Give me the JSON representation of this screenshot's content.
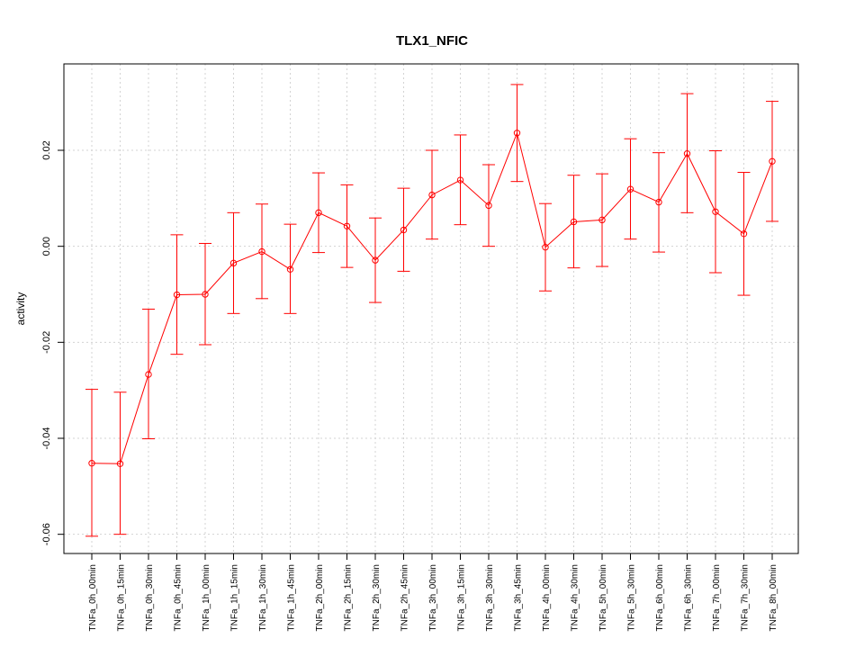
{
  "chart_data": {
    "type": "line",
    "title": "TLX1_NFIC",
    "xlabel": "",
    "ylabel": "activity",
    "ylim": [
      -0.064,
      0.038
    ],
    "y_ticks": [
      -0.06,
      -0.04,
      -0.02,
      0.0,
      0.02
    ],
    "y_tick_labels": [
      "-0.06",
      "-0.04",
      "-0.02",
      "0.00",
      "0.02"
    ],
    "grid": true,
    "colors": {
      "series": "#ff0000",
      "grid": "#d3d3d3",
      "axis": "#000000"
    },
    "categories": [
      "TNFa_0h_00min",
      "TNFa_0h_15min",
      "TNFa_0h_30min",
      "TNFa_0h_45min",
      "TNFa_1h_00min",
      "TNFa_1h_15min",
      "TNFa_1h_30min",
      "TNFa_1h_45min",
      "TNFa_2h_00min",
      "TNFa_2h_15min",
      "TNFa_2h_30min",
      "TNFa_2h_45min",
      "TNFa_3h_00min",
      "TNFa_3h_15min",
      "TNFa_3h_30min",
      "TNFa_3h_45min",
      "TNFa_4h_00min",
      "TNFa_4h_30min",
      "TNFa_5h_00min",
      "TNFa_5h_30min",
      "TNFa_6h_00min",
      "TNFa_6h_30min",
      "TNFa_7h_00min",
      "TNFa_7h_30min",
      "TNFa_8h_00min"
    ],
    "values": [
      -0.0452,
      -0.0453,
      -0.0267,
      -0.0101,
      -0.01,
      -0.0035,
      -0.0011,
      -0.0048,
      0.007,
      0.0042,
      -0.0029,
      0.0034,
      0.0107,
      0.0138,
      0.0085,
      0.0236,
      -0.0002,
      0.0051,
      0.0055,
      0.0119,
      0.0092,
      0.0193,
      0.0072,
      0.0026,
      0.0177
    ],
    "upper": [
      -0.0298,
      -0.0304,
      -0.0131,
      0.0024,
      0.0006,
      0.007,
      0.0088,
      0.0046,
      0.0153,
      0.0128,
      0.0059,
      0.0121,
      0.02,
      0.0232,
      0.017,
      0.0337,
      0.0089,
      0.0148,
      0.0151,
      0.0224,
      0.0195,
      0.0318,
      0.0199,
      0.0154,
      0.0302
    ],
    "lower": [
      -0.0604,
      -0.06,
      -0.0401,
      -0.0225,
      -0.0205,
      -0.014,
      -0.0109,
      -0.014,
      -0.0013,
      -0.0044,
      -0.0117,
      -0.0052,
      0.0015,
      0.0045,
      0.0,
      0.0135,
      -0.0093,
      -0.0045,
      -0.0042,
      0.0015,
      -0.0012,
      0.007,
      -0.0055,
      -0.0102,
      0.0052
    ]
  }
}
